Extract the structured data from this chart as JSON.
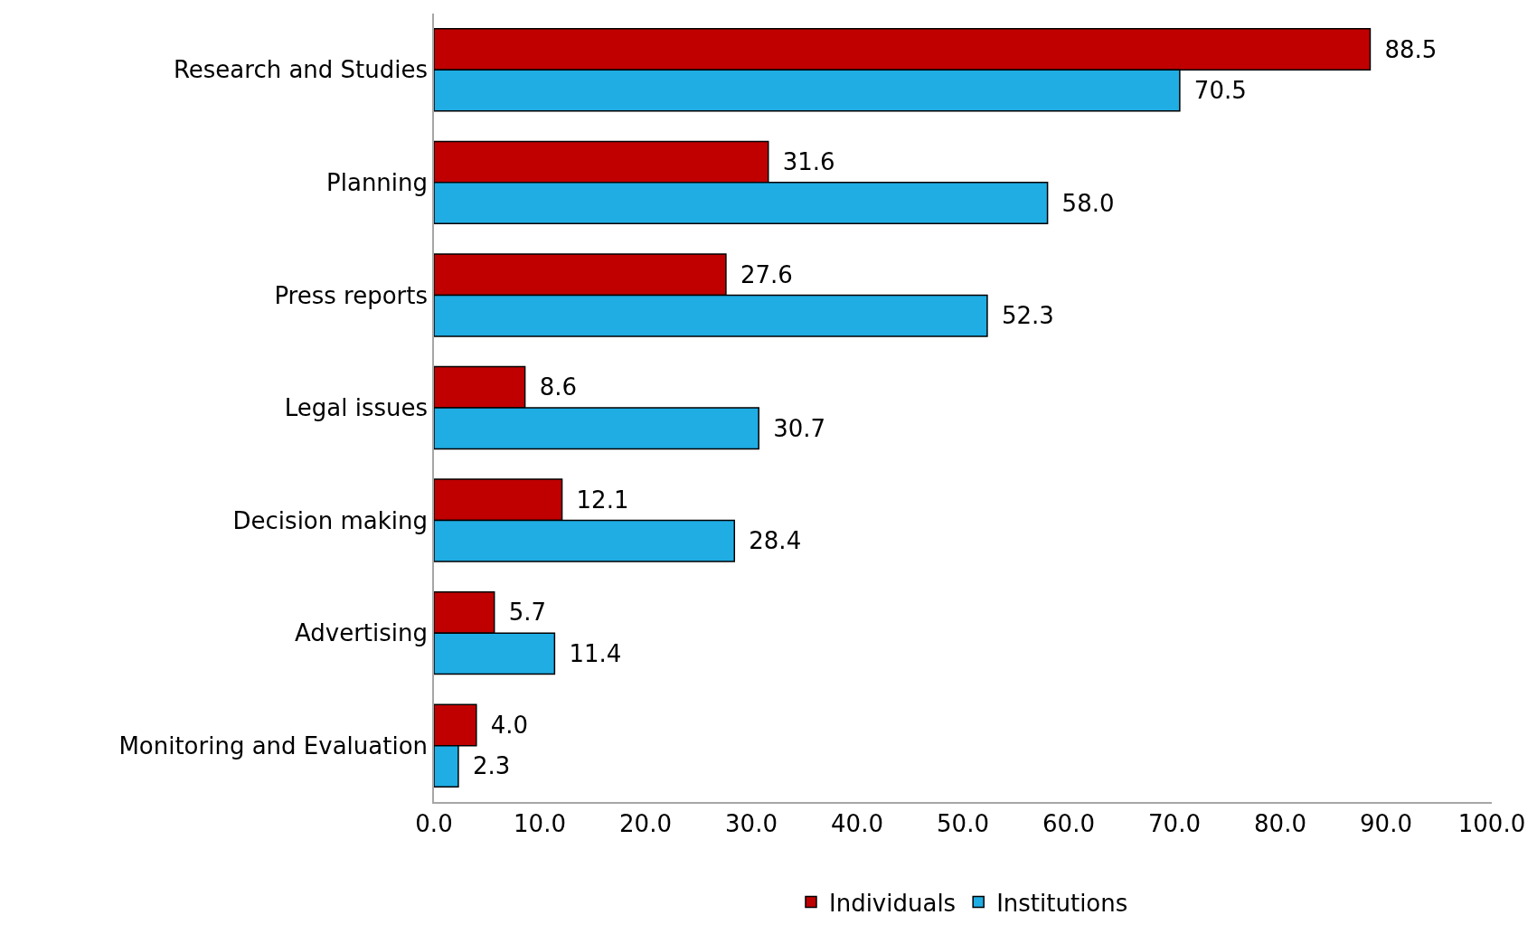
{
  "chart_data": {
    "type": "bar",
    "orientation": "horizontal",
    "categories": [
      "Research and Studies",
      "Planning",
      "Press reports",
      "Legal issues",
      "Decision making",
      "Advertising",
      "Monitoring and Evaluation"
    ],
    "series": [
      {
        "name": "Individuals",
        "color": "#c00000",
        "values": [
          88.5,
          31.6,
          27.6,
          8.6,
          12.1,
          5.7,
          4.0
        ],
        "value_labels": [
          "88.5",
          "31.6",
          "27.6",
          "8.6",
          "12.1",
          "5.7",
          "4.0"
        ]
      },
      {
        "name": "Institutions",
        "color": "#1fade4",
        "values": [
          70.5,
          58.0,
          52.3,
          30.7,
          28.4,
          11.4,
          2.3
        ],
        "value_labels": [
          "70.5",
          "58.0",
          "52.3",
          "30.7",
          "28.4",
          "11.4",
          "2.3"
        ]
      }
    ],
    "xlim": [
      0,
      100
    ],
    "xticks": [
      {
        "value": 0,
        "label": "0.0"
      },
      {
        "value": 10,
        "label": "10.0"
      },
      {
        "value": 20,
        "label": "20.0"
      },
      {
        "value": 30,
        "label": "30.0"
      },
      {
        "value": 40,
        "label": "40.0"
      },
      {
        "value": 50,
        "label": "50.0"
      },
      {
        "value": 60,
        "label": "60.0"
      },
      {
        "value": 70,
        "label": "70.0"
      },
      {
        "value": 80,
        "label": "80.0"
      },
      {
        "value": 90,
        "label": "90.0"
      },
      {
        "value": 100,
        "label": "100.0"
      }
    ],
    "legend": "bottom"
  }
}
